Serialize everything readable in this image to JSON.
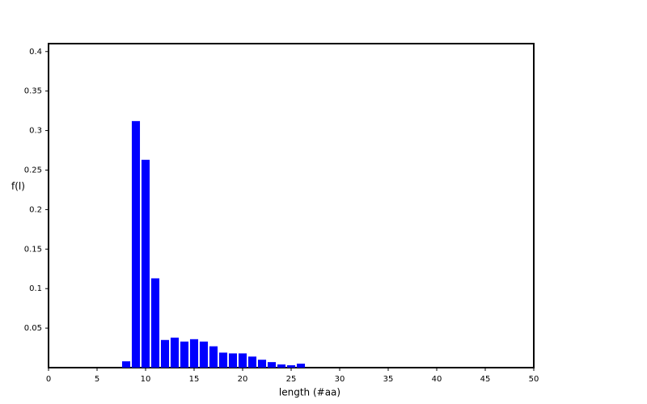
{
  "chart_data": {
    "type": "bar",
    "x": [
      8,
      9,
      10,
      11,
      12,
      13,
      14,
      15,
      16,
      17,
      18,
      19,
      20,
      21,
      22,
      23,
      24,
      25,
      26
    ],
    "values": [
      0.008,
      0.312,
      0.263,
      0.113,
      0.035,
      0.038,
      0.033,
      0.036,
      0.033,
      0.027,
      0.019,
      0.018,
      0.018,
      0.014,
      0.01,
      0.007,
      0.004,
      0.003,
      0.005
    ],
    "color": "#0000ff",
    "xlabel": "length (#aa)",
    "ylabel": "f(l)",
    "xlim": [
      0,
      50
    ],
    "xticks": [
      0,
      5,
      10,
      15,
      20,
      25,
      30,
      35,
      40,
      45,
      50
    ],
    "ylim": [
      0,
      0.41
    ],
    "yticks": [
      0.05,
      0.1,
      0.15,
      0.2,
      0.25,
      0.3,
      0.35,
      0.4
    ]
  }
}
